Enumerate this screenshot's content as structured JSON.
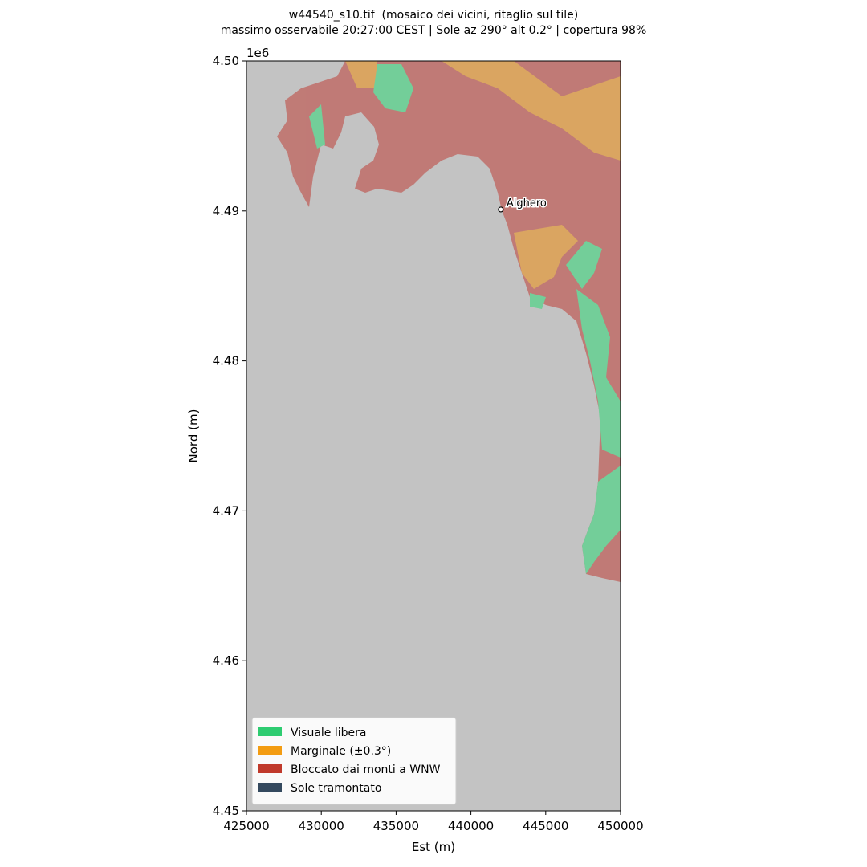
{
  "chart_data": {
    "type": "map",
    "title": "w44540_s10.tif  (mosaico dei vicini, ritaglio sul tile)",
    "subtitle": "massimo osservabile 20:27:00 CEST | Sole az 290° alt 0.2° | copertura 98%",
    "x_label": "Est (m)",
    "y_label": "Nord (m)",
    "y_offset_label": "1e6",
    "xlim": [
      425000,
      450000
    ],
    "ylim": [
      4450000,
      4500000
    ],
    "xticks": [
      425000,
      430000,
      435000,
      440000,
      445000,
      450000
    ],
    "yticks": [
      {
        "value": 4450000,
        "label": "4.45"
      },
      {
        "value": 4460000,
        "label": "4.46"
      },
      {
        "value": 4470000,
        "label": "4.47"
      },
      {
        "value": 4480000,
        "label": "4.48"
      },
      {
        "value": 4490000,
        "label": "4.49"
      },
      {
        "value": 4500000,
        "label": "4.50"
      }
    ],
    "grid": false,
    "legend_position": "lower left",
    "legend": [
      {
        "name": "Visuale libera",
        "color": "#2ecc71"
      },
      {
        "name": "Marginale (±0.3°)",
        "color": "#f39c12"
      },
      {
        "name": "Bloccato dai monti a WNW",
        "color": "#c0392b"
      },
      {
        "name": "Sole tramontato",
        "color": "#34495e"
      }
    ],
    "annotations": [
      {
        "text": "Alghero",
        "x": 442000,
        "y": 4490100
      }
    ]
  }
}
